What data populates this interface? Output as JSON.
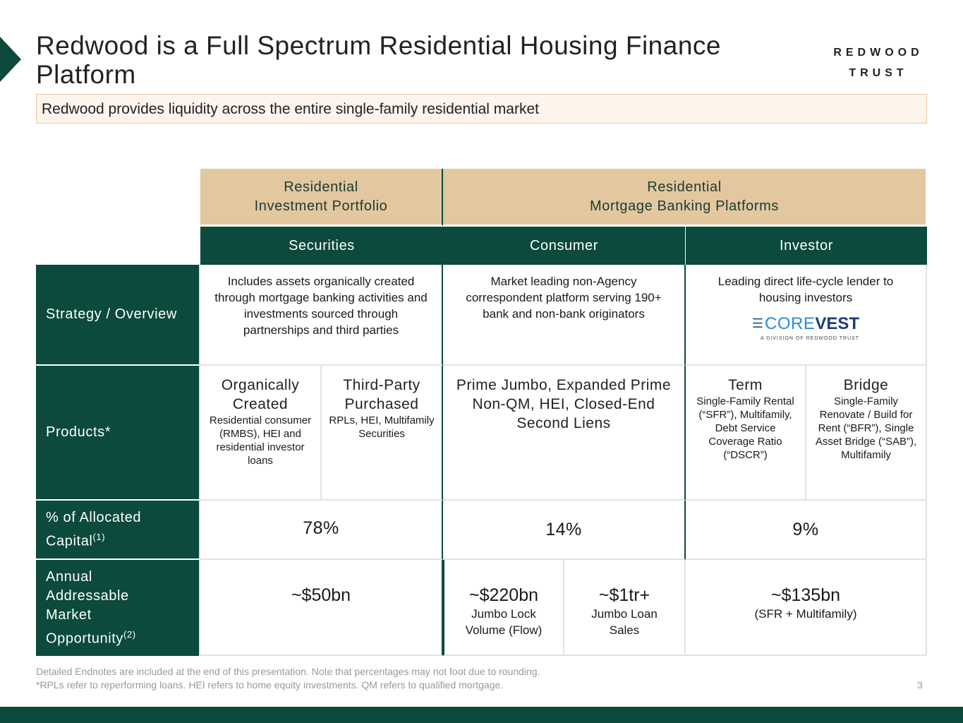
{
  "title": "Redwood is a Full Spectrum Residential Housing Finance Platform",
  "logo": {
    "line1": "REDWOOD",
    "line2": "TRUST"
  },
  "subtitle": "Redwood provides liquidity across the entire single-family residential market",
  "colors": {
    "accent": "#0b4a3c",
    "tan": "#e2c79f",
    "subtitle_bg": "#fdf4ec"
  },
  "header": {
    "rip": [
      "Residential",
      "Investment Portfolio"
    ],
    "rmb": [
      "Residential",
      "Mortgage Banking Platforms"
    ]
  },
  "subheader": [
    "Securities",
    "Consumer",
    "Investor"
  ],
  "rows": {
    "strategy": "Strategy / Overview",
    "products": "Products*",
    "pct": "% of Allocated Capital",
    "pct_sup": "(1)",
    "tam": "Annual Addressable Market Opportunity",
    "tam_sup": "(2)"
  },
  "strategy": {
    "securities": "Includes assets organically created through mortgage banking activities and investments sourced through partnerships and third parties",
    "consumer": "Market leading non-Agency correspondent platform serving 190+ bank and non-bank originators",
    "investor": "Leading direct life-cycle lender to housing investors",
    "corevest_logo": {
      "name": "COREVEST",
      "tagline": "A DIVISION OF REDWOOD TRUST"
    }
  },
  "products": {
    "organic": {
      "title": "Organically Created",
      "desc": "Residential consumer (RMBS), HEI and residential investor loans"
    },
    "thirdparty": {
      "title": "Third-Party Purchased",
      "desc": "RPLs, HEI, Multifamily Securities"
    },
    "consumer": "Prime Jumbo, Expanded Prime Non-QM, HEI, Closed-End Second Liens",
    "term": {
      "title": "Term",
      "desc": "Single-Family Rental (“SFR”), Multifamily, Debt Service Coverage Ratio (“DSCR”)"
    },
    "bridge": {
      "title": "Bridge",
      "desc": "Single-Family Renovate / Build for Rent (“BFR”), Single Asset Bridge (“SAB”), Multifamily"
    }
  },
  "pct": {
    "securities": "78%",
    "consumer": "14%",
    "investor": "9%"
  },
  "tam": {
    "securities": "~$50bn",
    "flow": {
      "value": "~$220bn",
      "desc": "Jumbo Lock Volume (Flow)"
    },
    "sales": {
      "value": "~$1tr+",
      "desc": "Jumbo Loan Sales"
    },
    "investor": {
      "value": "~$135bn",
      "desc": "(SFR + Multifamily)"
    }
  },
  "footnotes": [
    "Detailed Endnotes are included at the end of this presentation. Note that percentages may not foot due to rounding.",
    "*RPLs refer to reperforming loans. HEI refers to home equity investments. QM refers to qualified mortgage."
  ],
  "page_number": "3"
}
